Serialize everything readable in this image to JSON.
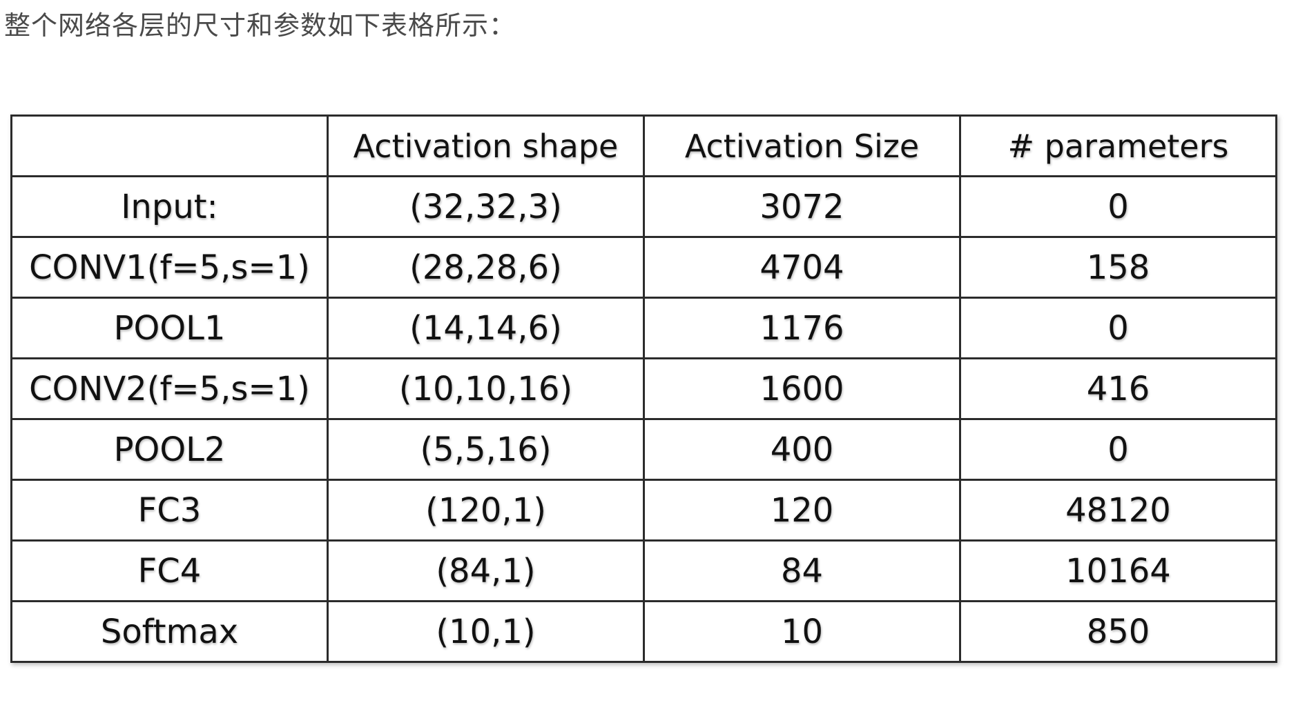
{
  "intro_text": "整个网络各层的尺寸和参数如下表格所示：",
  "table": {
    "headers": [
      "",
      "Activation shape",
      "Activation Size",
      "# parameters"
    ],
    "rows": [
      [
        "Input:",
        "(32,32,3)",
        "3072",
        "0"
      ],
      [
        "CONV1(f=5,s=1)",
        "(28,28,6)",
        "4704",
        "158"
      ],
      [
        "POOL1",
        "(14,14,6)",
        "1176",
        "0"
      ],
      [
        "CONV2(f=5,s=1)",
        "(10,10,16)",
        "1600",
        "416"
      ],
      [
        "POOL2",
        "(5,5,16)",
        "400",
        "0"
      ],
      [
        "FC3",
        "(120,1)",
        "120",
        "48120"
      ],
      [
        "FC4",
        "(84,1)",
        "84",
        "10164"
      ],
      [
        "Softmax",
        "(10,1)",
        "10",
        "850"
      ]
    ]
  }
}
